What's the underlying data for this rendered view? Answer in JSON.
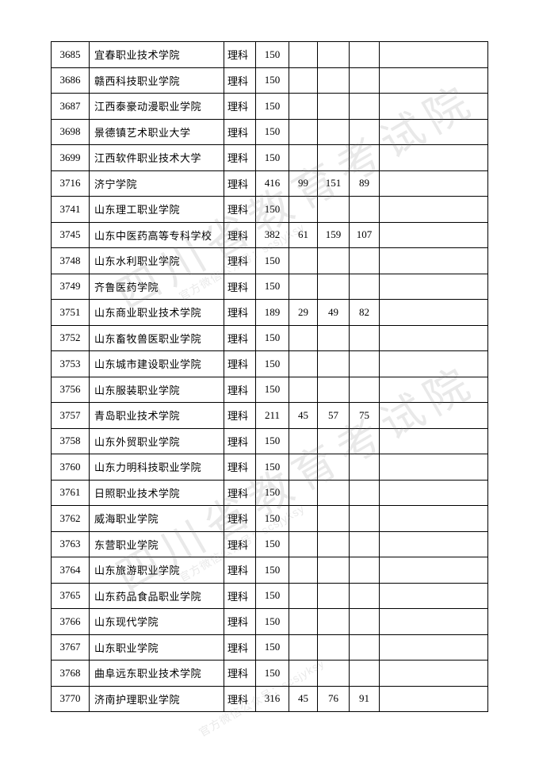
{
  "watermarks": {
    "big": "四川省教育考试院",
    "small": "官方微信公众号：scsjyksy"
  },
  "table": {
    "rows": [
      {
        "code": "3685",
        "name": "宜春职业技术学院",
        "track": "理科",
        "score": "150",
        "a": "",
        "b": "",
        "c": ""
      },
      {
        "code": "3686",
        "name": "赣西科技职业学院",
        "track": "理科",
        "score": "150",
        "a": "",
        "b": "",
        "c": ""
      },
      {
        "code": "3687",
        "name": "江西泰豪动漫职业学院",
        "track": "理科",
        "score": "150",
        "a": "",
        "b": "",
        "c": ""
      },
      {
        "code": "3698",
        "name": "景德镇艺术职业大学",
        "track": "理科",
        "score": "150",
        "a": "",
        "b": "",
        "c": ""
      },
      {
        "code": "3699",
        "name": "江西软件职业技术大学",
        "track": "理科",
        "score": "150",
        "a": "",
        "b": "",
        "c": ""
      },
      {
        "code": "3716",
        "name": "济宁学院",
        "track": "理科",
        "score": "416",
        "a": "99",
        "b": "151",
        "c": "89"
      },
      {
        "code": "3741",
        "name": "山东理工职业学院",
        "track": "理科",
        "score": "150",
        "a": "",
        "b": "",
        "c": ""
      },
      {
        "code": "3745",
        "name": "山东中医药高等专科学校",
        "track": "理科",
        "score": "382",
        "a": "61",
        "b": "159",
        "c": "107"
      },
      {
        "code": "3748",
        "name": "山东水利职业学院",
        "track": "理科",
        "score": "150",
        "a": "",
        "b": "",
        "c": ""
      },
      {
        "code": "3749",
        "name": "齐鲁医药学院",
        "track": "理科",
        "score": "150",
        "a": "",
        "b": "",
        "c": ""
      },
      {
        "code": "3751",
        "name": "山东商业职业技术学院",
        "track": "理科",
        "score": "189",
        "a": "29",
        "b": "49",
        "c": "82"
      },
      {
        "code": "3752",
        "name": "山东畜牧兽医职业学院",
        "track": "理科",
        "score": "150",
        "a": "",
        "b": "",
        "c": ""
      },
      {
        "code": "3753",
        "name": "山东城市建设职业学院",
        "track": "理科",
        "score": "150",
        "a": "",
        "b": "",
        "c": ""
      },
      {
        "code": "3756",
        "name": "山东服装职业学院",
        "track": "理科",
        "score": "150",
        "a": "",
        "b": "",
        "c": ""
      },
      {
        "code": "3757",
        "name": "青岛职业技术学院",
        "track": "理科",
        "score": "211",
        "a": "45",
        "b": "57",
        "c": "75"
      },
      {
        "code": "3758",
        "name": "山东外贸职业学院",
        "track": "理科",
        "score": "150",
        "a": "",
        "b": "",
        "c": ""
      },
      {
        "code": "3760",
        "name": "山东力明科技职业学院",
        "track": "理科",
        "score": "150",
        "a": "",
        "b": "",
        "c": ""
      },
      {
        "code": "3761",
        "name": "日照职业技术学院",
        "track": "理科",
        "score": "150",
        "a": "",
        "b": "",
        "c": ""
      },
      {
        "code": "3762",
        "name": "威海职业学院",
        "track": "理科",
        "score": "150",
        "a": "",
        "b": "",
        "c": ""
      },
      {
        "code": "3763",
        "name": "东营职业学院",
        "track": "理科",
        "score": "150",
        "a": "",
        "b": "",
        "c": ""
      },
      {
        "code": "3764",
        "name": "山东旅游职业学院",
        "track": "理科",
        "score": "150",
        "a": "",
        "b": "",
        "c": ""
      },
      {
        "code": "3765",
        "name": "山东药品食品职业学院",
        "track": "理科",
        "score": "150",
        "a": "",
        "b": "",
        "c": ""
      },
      {
        "code": "3766",
        "name": "山东现代学院",
        "track": "理科",
        "score": "150",
        "a": "",
        "b": "",
        "c": ""
      },
      {
        "code": "3767",
        "name": "山东职业学院",
        "track": "理科",
        "score": "150",
        "a": "",
        "b": "",
        "c": ""
      },
      {
        "code": "3768",
        "name": "曲阜远东职业技术学院",
        "track": "理科",
        "score": "150",
        "a": "",
        "b": "",
        "c": ""
      },
      {
        "code": "3770",
        "name": "济南护理职业学院",
        "track": "理科",
        "score": "316",
        "a": "45",
        "b": "76",
        "c": "91"
      }
    ]
  }
}
